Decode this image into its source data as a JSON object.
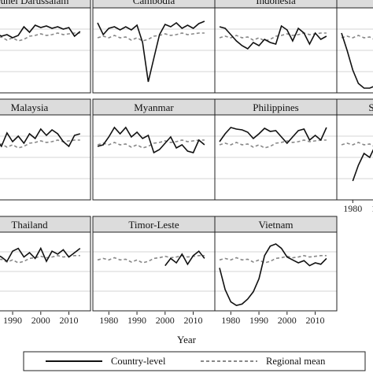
{
  "chart_data": {
    "type": "line",
    "xlabel": "Year",
    "x_ticks": [
      "1980",
      "1990",
      "2000",
      "2010"
    ],
    "legend": {
      "position": "bottom",
      "entries": [
        {
          "label": "Country-level",
          "style": "solid"
        },
        {
          "label": "Regional mean",
          "style": "dashed"
        }
      ]
    },
    "series_styles": {
      "country": {
        "color": "#111111",
        "dash": "none"
      },
      "regional": {
        "color": "#888888",
        "dash": "dashed"
      }
    },
    "grid": true,
    "ylim": [
      0,
      1
    ],
    "regional_mean": {
      "x": [
        1976,
        1978,
        1980,
        1982,
        1984,
        1986,
        1988,
        1990,
        1992,
        1994,
        1996,
        1998,
        2000,
        2002,
        2004,
        2006,
        2008,
        2010,
        2012,
        2014
      ],
      "y": [
        0.66,
        0.68,
        0.66,
        0.69,
        0.66,
        0.67,
        0.63,
        0.66,
        0.62,
        0.64,
        0.68,
        0.69,
        0.71,
        0.69,
        0.7,
        0.72,
        0.7,
        0.71,
        0.72,
        0.72
      ]
    },
    "panels": [
      {
        "title": "Brunei Darussalam",
        "x": [
          1976,
          1978,
          1980,
          1982,
          1984,
          1986,
          1988,
          1990,
          1992,
          1994,
          1996,
          1998,
          2000,
          2002,
          2004,
          2006,
          2008,
          2010,
          2012,
          2014
        ],
        "y": [
          0.62,
          0.66,
          0.71,
          0.67,
          0.72,
          0.68,
          0.7,
          0.66,
          0.69,
          0.8,
          0.73,
          0.82,
          0.79,
          0.81,
          0.78,
          0.8,
          0.77,
          0.79,
          0.68,
          0.74
        ]
      },
      {
        "title": "Cambodia",
        "x": [
          1976,
          1978,
          1980,
          1982,
          1984,
          1986,
          1988,
          1990,
          1992,
          1994,
          1996,
          1998,
          2000,
          2002,
          2004,
          2006,
          2008,
          2010,
          2012,
          2014
        ],
        "y": [
          0.85,
          0.7,
          0.78,
          0.8,
          0.76,
          0.8,
          0.76,
          0.82,
          0.6,
          0.1,
          0.4,
          0.7,
          0.83,
          0.8,
          0.85,
          0.78,
          0.82,
          0.78,
          0.84,
          0.87
        ]
      },
      {
        "title": "Indonesia",
        "x": [
          1976,
          1978,
          1980,
          1982,
          1984,
          1986,
          1988,
          1990,
          1992,
          1994,
          1996,
          1998,
          2000,
          2002,
          2004,
          2006,
          2008,
          2010,
          2012,
          2014
        ],
        "y": [
          0.8,
          0.78,
          0.7,
          0.62,
          0.56,
          0.52,
          0.6,
          0.56,
          0.64,
          0.6,
          0.58,
          0.81,
          0.76,
          0.62,
          0.78,
          0.72,
          0.58,
          0.72,
          0.64,
          0.68
        ]
      },
      {
        "title": "Malaysia",
        "x": [
          1976,
          1978,
          1980,
          1982,
          1984,
          1986,
          1988,
          1990,
          1992,
          1994,
          1996,
          1998,
          2000,
          2002,
          2004,
          2006,
          2008,
          2010,
          2012,
          2014
        ],
        "y": [
          0.7,
          0.64,
          0.75,
          0.61,
          0.73,
          0.64,
          0.81,
          0.7,
          0.77,
          0.68,
          0.8,
          0.74,
          0.86,
          0.78,
          0.85,
          0.8,
          0.7,
          0.64,
          0.78,
          0.8
        ]
      },
      {
        "title": "Myanmar",
        "x": [
          1976,
          1978,
          1980,
          1982,
          1984,
          1986,
          1988,
          1990,
          1992,
          1994,
          1996,
          1998,
          2000,
          2002,
          2004,
          2006,
          2008,
          2010,
          2012,
          2014
        ],
        "y": [
          0.64,
          0.66,
          0.76,
          0.88,
          0.8,
          0.88,
          0.76,
          0.82,
          0.74,
          0.78,
          0.56,
          0.6,
          0.68,
          0.76,
          0.62,
          0.66,
          0.58,
          0.56,
          0.72,
          0.66
        ]
      },
      {
        "title": "Philippines",
        "x": [
          1976,
          1978,
          1980,
          1982,
          1984,
          1986,
          1988,
          1990,
          1992,
          1994,
          1996,
          1998,
          2000,
          2002,
          2004,
          2006,
          2008,
          2010,
          2012,
          2014
        ],
        "y": [
          0.7,
          0.8,
          0.88,
          0.86,
          0.85,
          0.82,
          0.74,
          0.8,
          0.87,
          0.83,
          0.84,
          0.76,
          0.68,
          0.76,
          0.84,
          0.86,
          0.72,
          0.78,
          0.72,
          0.88
        ]
      },
      {
        "title": "Thailand",
        "x": [
          1976,
          1978,
          1980,
          1982,
          1984,
          1986,
          1988,
          1990,
          1992,
          1994,
          1996,
          1998,
          2000,
          2002,
          2004,
          2006,
          2008,
          2010,
          2012,
          2014
        ],
        "y": [
          0.62,
          0.66,
          0.72,
          0.68,
          0.74,
          0.7,
          0.64,
          0.78,
          0.82,
          0.7,
          0.76,
          0.68,
          0.82,
          0.64,
          0.78,
          0.74,
          0.8,
          0.7,
          0.76,
          0.82
        ]
      },
      {
        "title": "Timor-Leste",
        "x": [
          2000,
          2002,
          2004,
          2006,
          2008,
          2010,
          2012,
          2014
        ],
        "y": [
          0.58,
          0.68,
          0.62,
          0.74,
          0.6,
          0.72,
          0.78,
          0.68
        ]
      },
      {
        "title": "Vietnam",
        "x": [
          1976,
          1978,
          1980,
          1982,
          1984,
          1986,
          1988,
          1990,
          1992,
          1994,
          1996,
          1998,
          2000,
          2002,
          2004,
          2006,
          2008,
          2010,
          2012,
          2014
        ],
        "y": [
          0.55,
          0.25,
          0.08,
          0.03,
          0.05,
          0.12,
          0.22,
          0.4,
          0.72,
          0.85,
          0.88,
          0.82,
          0.7,
          0.66,
          0.62,
          0.65,
          0.58,
          0.62,
          0.6,
          0.68
        ]
      }
    ],
    "partial_panels": [
      {
        "title": "",
        "x": [
          1976,
          1978,
          1980,
          1982,
          1984,
          1986,
          1988,
          1990
        ],
        "y": [
          0.72,
          0.5,
          0.25,
          0.08,
          0.02,
          0.02,
          0.05,
          0.15
        ]
      },
      {
        "title": "S",
        "x": [
          1980,
          1982,
          1984,
          1986,
          1988,
          1990
        ],
        "y": [
          0.2,
          0.4,
          0.55,
          0.5,
          0.65,
          0.7
        ]
      }
    ]
  }
}
